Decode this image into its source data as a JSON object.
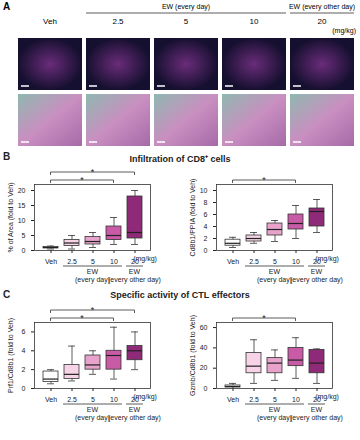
{
  "panel_a": {
    "label": "A",
    "columns": [
      "Veh",
      "2.5",
      "5",
      "10",
      "20"
    ],
    "groups": [
      {
        "label": "EW (every day)",
        "columns": [
          "2.5",
          "5",
          "10"
        ]
      },
      {
        "label": "EW (every other day)",
        "columns": [
          "20"
        ]
      }
    ],
    "unit": "(mg/kg)"
  },
  "sections": [
    {
      "label": "B",
      "title": "Infiltration of CD8⁺ cells"
    },
    {
      "label": "C",
      "title": "Specific activity of CTL effectors"
    }
  ],
  "chart_data": [
    {
      "type": "box",
      "y_label": "% of Area (fold to Veh)",
      "categories": [
        "Veh",
        "2.5",
        "5",
        "10",
        "20"
      ],
      "colors": [
        "#ffffff",
        "#f6d3e6",
        "#e8a3cd",
        "#c95ba6",
        "#8e2a77"
      ],
      "stats": {
        "min": [
          0.5,
          0.5,
          1,
          2,
          2
        ],
        "q1": [
          0.7,
          1.5,
          2,
          3.5,
          4
        ],
        "median": [
          1,
          2.5,
          3,
          5,
          6
        ],
        "q3": [
          1.2,
          3.5,
          4.5,
          8,
          18
        ],
        "max": [
          1.5,
          5,
          6,
          11,
          20
        ]
      },
      "ylim": [
        0,
        22
      ],
      "yticks": [
        0,
        5,
        10,
        15,
        20
      ],
      "significance": [
        {
          "from": "Veh",
          "to": "10",
          "label": "*"
        },
        {
          "from": "Veh",
          "to": "20",
          "label": "*"
        }
      ],
      "groups": [
        {
          "label": "EW (every day)",
          "categories": [
            "2.5",
            "5",
            "10"
          ]
        },
        {
          "label": "EW (every other day)",
          "categories": [
            "20"
          ]
        }
      ],
      "unit": "(mg/kg)"
    },
    {
      "type": "box",
      "y_label": "Cd8b1/PPIA (fold to Veh)",
      "categories": [
        "Veh",
        "2.5",
        "5",
        "10",
        "20"
      ],
      "colors": [
        "#ffffff",
        "#f6d3e6",
        "#e8a3cd",
        "#c95ba6",
        "#8e2a77"
      ],
      "stats": {
        "min": [
          0.5,
          1.2,
          1.5,
          2,
          3
        ],
        "q1": [
          0.8,
          1.5,
          2.5,
          3.5,
          4
        ],
        "median": [
          1.2,
          2,
          3.5,
          4.5,
          6.5
        ],
        "q3": [
          1.8,
          2.5,
          4.5,
          6,
          7
        ],
        "max": [
          2.2,
          3,
          5,
          7.5,
          8.5
        ]
      },
      "ylim": [
        0,
        11
      ],
      "yticks": [
        0,
        2,
        4,
        6,
        8,
        10
      ],
      "significance": [
        {
          "from": "Veh",
          "to": "10",
          "label": "*"
        }
      ],
      "groups": [
        {
          "label": "EW (every day)",
          "categories": [
            "2.5",
            "5",
            "10"
          ]
        },
        {
          "label": "EW (every other day)",
          "categories": [
            "20"
          ]
        }
      ],
      "unit": "(mg/kg)"
    },
    {
      "type": "box",
      "y_label": "Prf1/Cd8b1 (fold to Veh)",
      "categories": [
        "Veh",
        "2.5",
        "5",
        "10",
        "20"
      ],
      "colors": [
        "#ffffff",
        "#f6d3e6",
        "#e8a3cd",
        "#c95ba6",
        "#8e2a77"
      ],
      "stats": {
        "min": [
          0.5,
          0.8,
          1.5,
          1,
          2
        ],
        "q1": [
          0.7,
          1,
          2,
          2,
          3
        ],
        "median": [
          1,
          1.5,
          2.5,
          3.5,
          4
        ],
        "q3": [
          1.8,
          2.5,
          3.5,
          4,
          4.5
        ],
        "max": [
          2,
          4.5,
          4,
          6.5,
          6
        ]
      },
      "ylim": [
        0,
        7
      ],
      "yticks": [
        0,
        2,
        4,
        6
      ],
      "significance": [
        {
          "from": "Veh",
          "to": "10",
          "label": "*"
        },
        {
          "from": "Veh",
          "to": "20",
          "label": "*"
        }
      ],
      "groups": [
        {
          "label": "EW (every day)",
          "categories": [
            "2.5",
            "5",
            "10"
          ]
        },
        {
          "label": "EW (every other day)",
          "categories": [
            "20"
          ]
        }
      ],
      "unit": "(mg/kg)"
    },
    {
      "type": "box",
      "y_label": "Gzmb/Cd8b1 (fold to Veh)",
      "categories": [
        "Veh",
        "2.5",
        "5",
        "10",
        "20"
      ],
      "colors": [
        "#ffffff",
        "#f6d3e6",
        "#e8a3cd",
        "#c95ba6",
        "#8e2a77"
      ],
      "stats": {
        "min": [
          0,
          5,
          8,
          10,
          5
        ],
        "q1": [
          1,
          15,
          15,
          22,
          15
        ],
        "median": [
          2,
          22,
          25,
          28,
          25
        ],
        "q3": [
          3,
          35,
          30,
          40,
          38
        ],
        "max": [
          5,
          48,
          38,
          50,
          39
        ]
      },
      "ylim": [
        0,
        65
      ],
      "yticks": [
        0,
        20,
        40,
        60
      ],
      "significance": [
        {
          "from": "Veh",
          "to": "10",
          "label": "*"
        }
      ],
      "groups": [
        {
          "label": "EW (every day)",
          "categories": [
            "2.5",
            "5",
            "10"
          ]
        },
        {
          "label": "EW (every other day)",
          "categories": [
            "20"
          ]
        }
      ],
      "unit": "(mg/kg)"
    }
  ]
}
